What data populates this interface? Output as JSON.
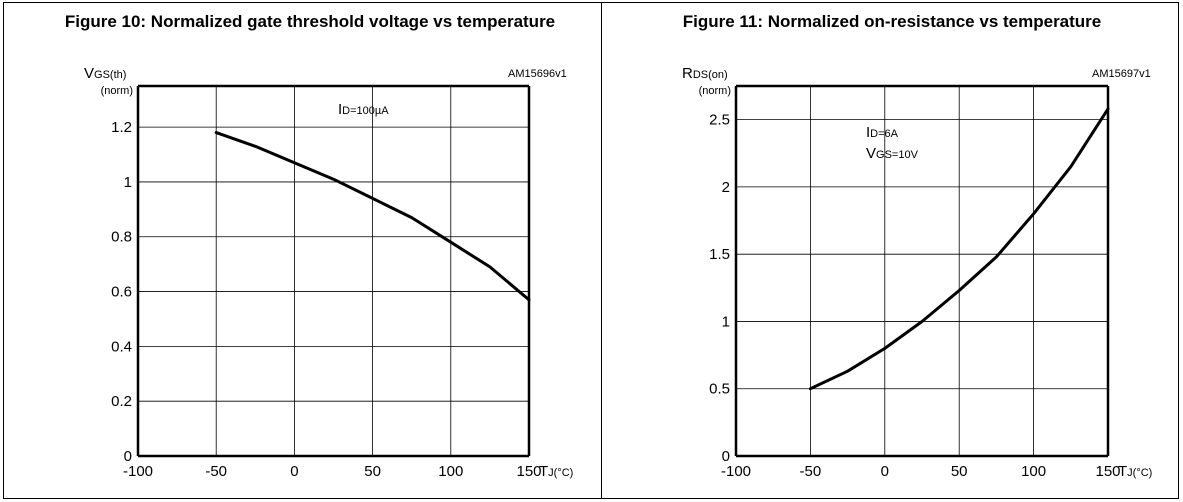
{
  "figures": [
    {
      "title": "Figure 10: Normalized gate threshold voltage vs temperature",
      "code": "AM15696v1"
    },
    {
      "title": "Figure 11: Normalized on-resistance vs temperature",
      "code": "AM15697v1"
    }
  ],
  "chart_data": [
    {
      "type": "line",
      "ylabel_main": "VGS(th)",
      "ylabel_unit": "(norm)",
      "xlabel": "TJ(°C)",
      "annotations": [
        "ID=100µA"
      ],
      "xlim": [
        -100,
        150
      ],
      "ylim": [
        0,
        1.35
      ],
      "grid": true,
      "x_ticks": [
        -100,
        -50,
        0,
        50,
        100,
        150
      ],
      "x_tick_labels": [
        "-100",
        "-50",
        "0",
        "50",
        "100",
        "150"
      ],
      "y_ticks": [
        0,
        0.2,
        0.4,
        0.6,
        0.8,
        1,
        1.2
      ],
      "y_tick_labels": [
        "0",
        "0.2",
        "0.4",
        "0.6",
        "0.8",
        "1",
        "1.2"
      ],
      "series": [
        {
          "x": [
            -50,
            -25,
            0,
            25,
            50,
            75,
            100,
            125,
            150
          ],
          "y": [
            1.18,
            1.13,
            1.07,
            1.01,
            0.94,
            0.87,
            0.78,
            0.69,
            0.57
          ]
        }
      ]
    },
    {
      "type": "line",
      "ylabel_main": "RDS(on)",
      "ylabel_unit": "(norm)",
      "xlabel": "TJ(°C)",
      "annotations": [
        "ID=6A",
        "VGS=10V"
      ],
      "xlim": [
        -100,
        150
      ],
      "ylim": [
        0,
        2.75
      ],
      "grid": true,
      "x_ticks": [
        -100,
        -50,
        0,
        50,
        100,
        150
      ],
      "x_tick_labels": [
        "-100",
        "-50",
        "0",
        "50",
        "100",
        "150"
      ],
      "y_ticks": [
        0,
        0.5,
        1,
        1.5,
        2,
        2.5
      ],
      "y_tick_labels": [
        "0",
        "0.5",
        "1",
        "1.5",
        "2",
        "2.5"
      ],
      "series": [
        {
          "x": [
            -50,
            -25,
            0,
            25,
            50,
            75,
            100,
            125,
            150
          ],
          "y": [
            0.5,
            0.63,
            0.8,
            1.0,
            1.23,
            1.48,
            1.8,
            2.15,
            2.58
          ]
        }
      ]
    }
  ]
}
